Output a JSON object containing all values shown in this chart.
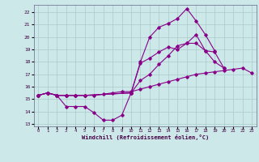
{
  "xlabel": "Windchill (Refroidissement éolien,°C)",
  "background_color": "#cce8e8",
  "grid_color": "#aacccc",
  "line_color": "#880088",
  "xlim": [
    -0.5,
    23.5
  ],
  "ylim": [
    12.8,
    22.6
  ],
  "yticks": [
    13,
    14,
    15,
    16,
    17,
    18,
    19,
    20,
    21,
    22
  ],
  "xticks": [
    0,
    1,
    2,
    3,
    4,
    5,
    6,
    7,
    8,
    9,
    10,
    11,
    12,
    13,
    14,
    15,
    16,
    17,
    18,
    19,
    20,
    21,
    22,
    23
  ],
  "series": [
    {
      "x": [
        0,
        1,
        2,
        3,
        4,
        5,
        6,
        7,
        8,
        9,
        10,
        11,
        12,
        13,
        14,
        15,
        16,
        17,
        18,
        19,
        20,
        21,
        22,
        23
      ],
      "y": [
        15.3,
        15.5,
        15.3,
        15.3,
        15.3,
        15.3,
        15.3,
        15.4,
        15.5,
        15.6,
        15.6,
        15.8,
        16.0,
        16.2,
        16.4,
        16.6,
        16.8,
        17.0,
        17.1,
        17.2,
        17.3,
        17.4,
        17.5,
        17.1
      ]
    },
    {
      "x": [
        0,
        1,
        2,
        3,
        4,
        5,
        10,
        11,
        12,
        13,
        14,
        15,
        16,
        17,
        18,
        19,
        20
      ],
      "y": [
        15.3,
        15.5,
        15.3,
        15.3,
        15.3,
        15.3,
        15.5,
        17.9,
        18.3,
        18.8,
        19.2,
        19.0,
        19.5,
        20.2,
        18.9,
        18.8,
        17.5
      ]
    },
    {
      "x": [
        0,
        1,
        2,
        3,
        4,
        5,
        6,
        7,
        8,
        9,
        10,
        11,
        12,
        13,
        14,
        15,
        16,
        17,
        18,
        19
      ],
      "y": [
        15.3,
        15.5,
        15.3,
        14.4,
        14.4,
        14.4,
        13.9,
        13.3,
        13.3,
        13.7,
        15.5,
        18.0,
        20.0,
        20.8,
        21.1,
        21.5,
        22.3,
        21.3,
        20.2,
        18.9
      ]
    },
    {
      "x": [
        0,
        1,
        2,
        3,
        4,
        5,
        10,
        11,
        12,
        13,
        14,
        15,
        16,
        17,
        18,
        19,
        20
      ],
      "y": [
        15.3,
        15.5,
        15.3,
        15.3,
        15.3,
        15.3,
        15.5,
        16.5,
        17.0,
        17.8,
        18.5,
        19.3,
        19.5,
        19.5,
        18.9,
        18.0,
        17.5
      ]
    }
  ]
}
